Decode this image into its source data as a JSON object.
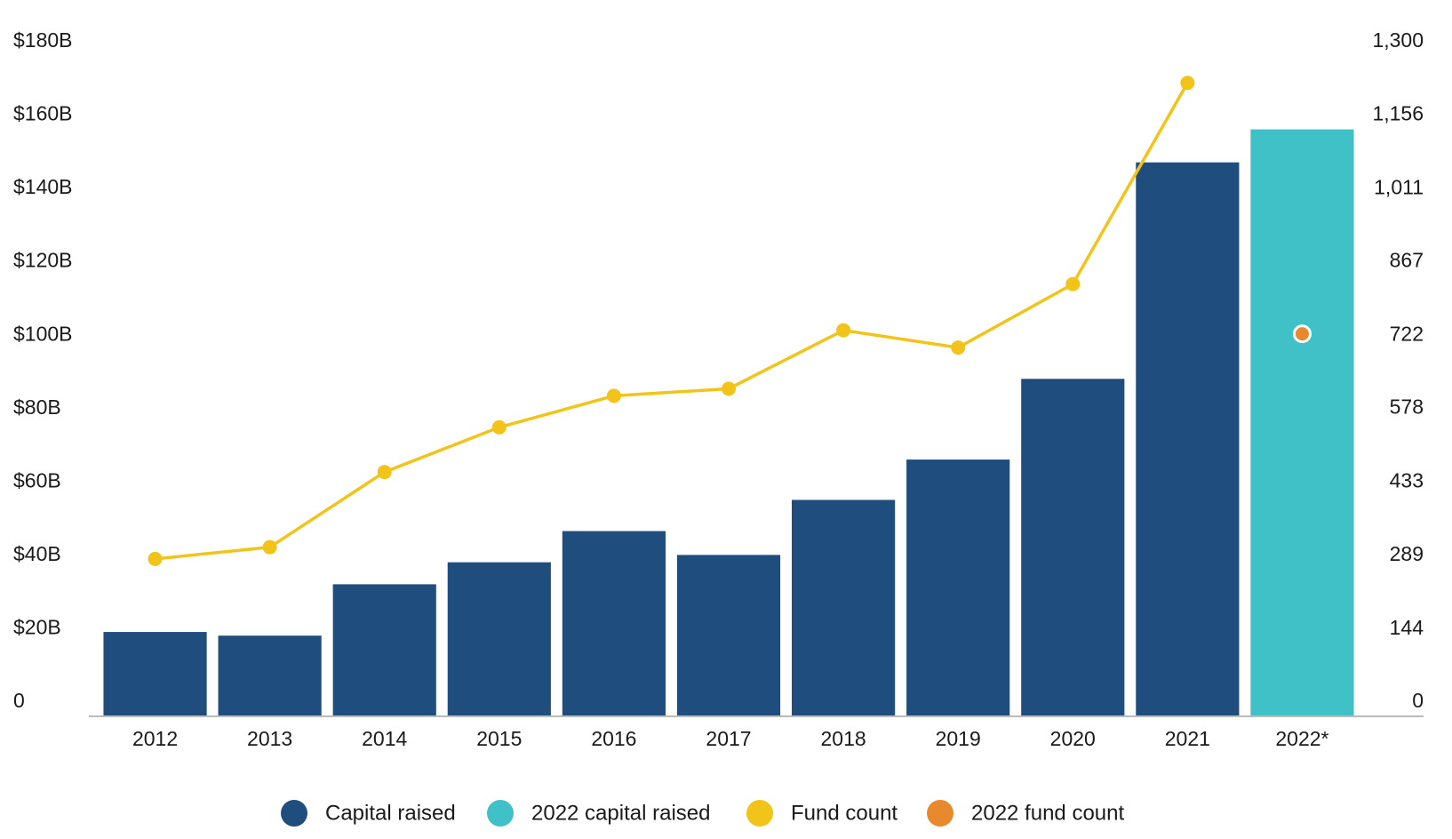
{
  "chart_data": {
    "type": "bar",
    "categories": [
      "2012",
      "2013",
      "2014",
      "2015",
      "2016",
      "2017",
      "2018",
      "2019",
      "2020",
      "2021",
      "2022*"
    ],
    "series": [
      {
        "name": "Capital raised",
        "type": "bar",
        "color": "#1f4e7e",
        "values": [
          23,
          22,
          36,
          42,
          50.5,
          44,
          59,
          70,
          92,
          151,
          null
        ]
      },
      {
        "name": "2022 capital raised",
        "type": "bar",
        "color": "#40c1c7",
        "values": [
          null,
          null,
          null,
          null,
          null,
          null,
          null,
          null,
          null,
          null,
          160
        ]
      },
      {
        "name": "Fund count",
        "type": "line",
        "axis": "y2",
        "color": "#f2c41a",
        "values": [
          310,
          333,
          481,
          569,
          631,
          645,
          760,
          726,
          851,
          1247,
          null
        ]
      },
      {
        "name": "2022 fund count",
        "type": "scatter",
        "axis": "y2",
        "color": "#e8892e",
        "values": [
          null,
          null,
          null,
          null,
          null,
          null,
          null,
          null,
          null,
          null,
          753
        ]
      }
    ],
    "ylim": [
      0,
      180
    ],
    "yticks": [
      {
        "value": 0,
        "label": "0"
      },
      {
        "value": 20,
        "label": "$20B"
      },
      {
        "value": 40,
        "label": "$40B"
      },
      {
        "value": 60,
        "label": "$60B"
      },
      {
        "value": 80,
        "label": "$80B"
      },
      {
        "value": 100,
        "label": "$100B"
      },
      {
        "value": 120,
        "label": "$120B"
      },
      {
        "value": 140,
        "label": "$140B"
      },
      {
        "value": 160,
        "label": "$160B"
      },
      {
        "value": 180,
        "label": "$180B"
      }
    ],
    "y2lim": [
      0,
      1300
    ],
    "y2ticks": [
      0,
      144,
      289,
      433,
      578,
      722,
      867,
      {
        "value": 1011,
        "label": "1,011"
      },
      {
        "value": 1156,
        "label": "1,156"
      },
      {
        "value": 1300,
        "label": "1,300"
      }
    ]
  }
}
